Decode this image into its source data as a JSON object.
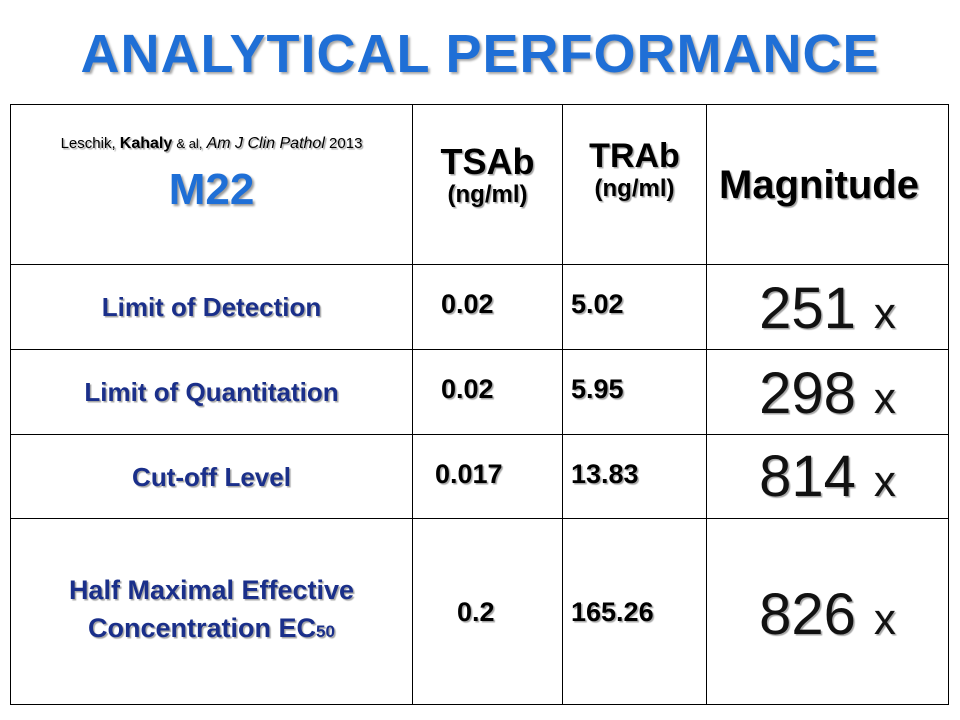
{
  "title": "ANALYTICAL  PERFORMANCE",
  "header": {
    "citation": {
      "author1": "Leschik,",
      "author2": "Kahaly",
      "etal": "& al,",
      "journal": "Am J Clin Pathol",
      "year": "2013"
    },
    "antibody": "M22",
    "col_tsab": "TSAb",
    "col_trab": "TRAb",
    "unit": "(ng/ml)",
    "col_magnitude": "Magnitude"
  },
  "rows": [
    {
      "label": "Limit of Detection",
      "tsab": "0.02",
      "trab": "5.02",
      "magnitude": "251",
      "suffix": "x"
    },
    {
      "label": "Limit of Quantitation",
      "tsab": "0.02",
      "trab": "5.95",
      "magnitude": "298",
      "suffix": "x"
    },
    {
      "label": "Cut-off Level",
      "tsab": "0.017",
      "trab": "13.83",
      "magnitude": "814",
      "suffix": "x"
    },
    {
      "label_line1": "Half Maximal Effective",
      "label_line2": "Concentration EC",
      "label_sub": "50",
      "tsab": "0.2",
      "trab": "165.26",
      "magnitude": "826",
      "suffix": "x"
    }
  ],
  "colors": {
    "title": "#1f6fd6",
    "accent": "#1f6fd6",
    "label": "#1a2f8a"
  }
}
